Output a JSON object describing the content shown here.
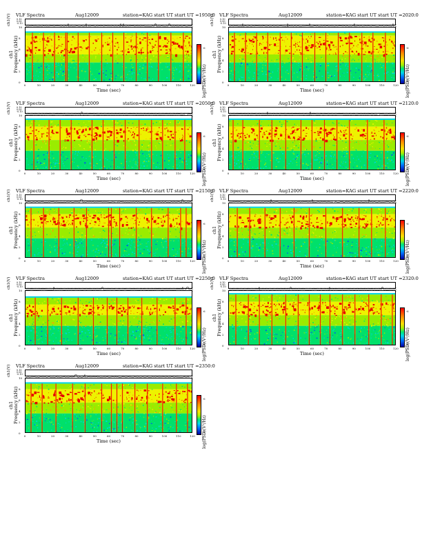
{
  "header": {
    "title": "VLF Spectra",
    "date": "Aug12009",
    "station": "station=KAG",
    "start_prefix": "start UT ="
  },
  "labels": {
    "ts_ylabel": "ch1(V)",
    "ylabel_line1": "ch1",
    "ylabel_line2": "Frequency (kHz)",
    "xlabel": "Time (sec)",
    "cbar_label": "log(PSD)(V²/Hz)"
  },
  "ts_ticks": [
    "0.10",
    "0.00",
    "-0.10"
  ],
  "xticks": [
    "0",
    "10",
    "20",
    "30",
    "40",
    "50",
    "60",
    "70",
    "80",
    "90",
    "100",
    "110",
    "120"
  ],
  "yticks": [
    "10",
    "8",
    "6",
    "4",
    "2",
    "0"
  ],
  "cbar_ticks": [
    "-6",
    "-8"
  ],
  "colors": {
    "red": "#e60000",
    "orange": "#ff9900",
    "yellow": "#eef200",
    "lime": "#9aec00",
    "green": "#00e06a",
    "cyan": "#00d4e0",
    "blue": "#0048ff",
    "dark": "#3a2020"
  },
  "chart_data": [
    {
      "type": "heatmap",
      "start_ut": "1950:0",
      "xlim": [
        0,
        120
      ],
      "ylim": [
        0,
        10
      ],
      "top_khz": 9.3,
      "band_khz": [
        5.0,
        8.5
      ],
      "spikes_sec": [
        5,
        13,
        21,
        29,
        30,
        38,
        46,
        55,
        63,
        71,
        80,
        88,
        96,
        105,
        114
      ],
      "ts_spikes_sec": [
        31,
        44,
        68,
        70,
        93,
        103
      ]
    },
    {
      "type": "heatmap",
      "start_ut": "2020:0",
      "xlim": [
        0,
        120
      ],
      "ylim": [
        0,
        10
      ],
      "top_khz": 9.3,
      "band_khz": [
        5.0,
        8.5
      ],
      "spikes_sec": [
        4,
        12,
        20,
        28,
        37,
        45,
        53,
        62,
        70,
        79,
        87,
        96,
        104,
        113
      ],
      "ts_spikes_sec": [
        10,
        42,
        58,
        90,
        118
      ]
    },
    {
      "type": "heatmap",
      "start_ut": "2050:0",
      "xlim": [
        0,
        120
      ],
      "ylim": [
        0,
        10
      ],
      "top_khz": 9.5,
      "band_khz": [
        5.5,
        8.0
      ],
      "spikes_sec": [
        6,
        17,
        25,
        33,
        48,
        56,
        64,
        72,
        82,
        91,
        99,
        108,
        115
      ],
      "ts_spikes_sec": [
        40,
        115
      ]
    },
    {
      "type": "heatmap",
      "start_ut": "2120:0",
      "xlim": [
        0,
        120
      ],
      "ylim": [
        0,
        10
      ],
      "top_khz": 9.5,
      "band_khz": [
        5.5,
        8.0
      ],
      "spikes_sec": [
        3,
        10,
        22,
        31,
        41,
        52,
        60,
        69,
        78,
        87,
        100,
        112
      ],
      "ts_spikes_sec": [
        28,
        58,
        107
      ]
    },
    {
      "type": "heatmap",
      "start_ut": "2150:0",
      "xlim": [
        0,
        120
      ],
      "ylim": [
        0,
        10
      ],
      "top_khz": 9.4,
      "band_khz": [
        5.5,
        8.0
      ],
      "spikes_sec": [
        4,
        13,
        24,
        35,
        44,
        60,
        62,
        68,
        80,
        91,
        103,
        112,
        116
      ],
      "ts_spikes_sec": [
        40,
        65,
        112
      ]
    },
    {
      "type": "heatmap",
      "start_ut": "2220:0",
      "xlim": [
        0,
        120
      ],
      "ylim": [
        0,
        10
      ],
      "top_khz": 9.4,
      "band_khz": [
        5.5,
        8.0
      ],
      "spikes_sec": [
        6,
        15,
        26,
        37,
        47,
        58,
        70,
        82,
        94,
        103,
        113
      ],
      "ts_spikes_sec": [
        30,
        60,
        75,
        100
      ]
    },
    {
      "type": "heatmap",
      "start_ut": "2250:0",
      "xlim": [
        0,
        120
      ],
      "ylim": [
        0,
        10
      ],
      "top_khz": 9.0,
      "band_khz": [
        5.5,
        7.5
      ],
      "spikes_sec": [
        7,
        16,
        26,
        38,
        49,
        59,
        66,
        74,
        84,
        95,
        108,
        116
      ],
      "ts_spikes_sec": [
        20,
        55,
        113,
        116
      ]
    },
    {
      "type": "heatmap",
      "start_ut": "2320:0",
      "xlim": [
        0,
        120
      ],
      "ylim": [
        0,
        10
      ],
      "top_khz": 9.6,
      "band_khz": [
        5.5,
        8.0
      ],
      "spikes_sec": [
        5,
        14,
        22,
        31,
        41,
        50,
        58,
        66,
        73,
        82,
        91,
        101,
        110,
        118
      ],
      "ts_spikes_sec": [
        22,
        44,
        72,
        110
      ]
    },
    {
      "type": "heatmap",
      "start_ut": "2350:0",
      "xlim": [
        0,
        120
      ],
      "ylim": [
        0,
        10
      ],
      "top_khz": 9.3,
      "band_khz": [
        5.5,
        8.0
      ],
      "spikes_sec": [
        4,
        12,
        22,
        34,
        43,
        55,
        62,
        66,
        70,
        79,
        88,
        99,
        109,
        117
      ],
      "ts_spikes_sec": [
        36,
        43,
        118
      ]
    }
  ]
}
